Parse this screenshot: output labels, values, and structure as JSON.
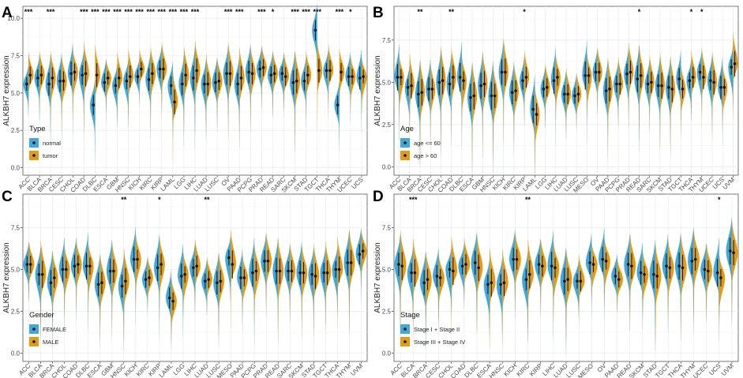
{
  "colors": {
    "blue": "#3fa9dd",
    "orange": "#e39b14",
    "grid": "#ebebeb",
    "panel_border": "#555555"
  },
  "chart_data": [
    {
      "panel": "A",
      "type": "violin",
      "ylabel": "ALKBH7 expression",
      "ylim": [
        -0.5,
        10.8
      ],
      "yticks": [
        "0.0",
        "2.5",
        "5.0",
        "7.5",
        "10.0"
      ],
      "legend": {
        "title": "Type",
        "entries": [
          "normal",
          "tumor"
        ]
      },
      "categories": [
        "ACC",
        "BLCA",
        "BRCA",
        "CESC",
        "CHOL",
        "COAD",
        "DLBC",
        "ESCA",
        "GBM",
        "HNSC",
        "KICH",
        "KIRC",
        "KIRP",
        "LAML",
        "LGG",
        "LIHC",
        "LUAD",
        "LUSC",
        "OV",
        "PAAD",
        "PCPG",
        "PRAD",
        "READ",
        "SARC",
        "SKCM",
        "STAD",
        "TGCT",
        "THCA",
        "THYM",
        "UCEC",
        "UCS"
      ],
      "series": [
        {
          "name": "normal",
          "medians": [
            5.6,
            6.0,
            5.6,
            5.8,
            6.3,
            6.2,
            4.2,
            5.7,
            5.5,
            5.8,
            6.1,
            5.9,
            6.6,
            5.5,
            5.6,
            6.0,
            5.6,
            5.7,
            6.3,
            5.6,
            6.4,
            6.6,
            6.2,
            6.3,
            5.7,
            5.8,
            9.2,
            6.5,
            4.2,
            6.1,
            6.0
          ]
        },
        {
          "name": "tumor",
          "medians": [
            6.2,
            6.2,
            6.0,
            5.8,
            6.4,
            6.3,
            6.2,
            6.0,
            6.0,
            6.1,
            6.6,
            6.3,
            6.6,
            4.4,
            6.2,
            6.5,
            5.6,
            5.8,
            6.3,
            6.0,
            6.3,
            6.7,
            6.3,
            6.1,
            5.8,
            6.2,
            6.5,
            6.5,
            6.4,
            6.1,
            6.1
          ]
        }
      ],
      "significance": [
        "***",
        "",
        "***",
        "",
        "",
        "***",
        "***",
        "***",
        "***",
        "***",
        "***",
        "***",
        "***",
        "***",
        "***",
        "***",
        "",
        "",
        "***",
        "***",
        "",
        "***",
        "*",
        "",
        "***",
        "***",
        "***",
        "",
        "***",
        "*",
        ""
      ]
    },
    {
      "panel": "B",
      "type": "violin",
      "ylabel": "ALKBH7 expression",
      "ylim": [
        -0.5,
        9.5
      ],
      "yticks": [
        "0.0",
        "2.5",
        "5.0",
        "7.5"
      ],
      "legend": {
        "title": "Age",
        "entries": [
          "age <= 60",
          "age > 60"
        ]
      },
      "categories": [
        "ACC",
        "BLCA",
        "BRCA",
        "CESC",
        "CHOL",
        "COAD",
        "DLBC",
        "ESCA",
        "GBM",
        "HNSC",
        "KICH",
        "KIRC",
        "KIRP",
        "LAML",
        "LGG",
        "LIHC",
        "LUAD",
        "LUSC",
        "MESO",
        "OV",
        "PAAD",
        "PCPG",
        "PRAD",
        "READ",
        "SARC",
        "SKCM",
        "STAD",
        "TGCT",
        "THCA",
        "THYM",
        "UCEC",
        "UCS",
        "UVM"
      ],
      "series": [
        {
          "name": "age <= 60",
          "medians": [
            5.3,
            4.7,
            4.3,
            4.6,
            5.0,
            4.9,
            5.3,
            4.1,
            4.8,
            4.2,
            5.6,
            4.4,
            5.1,
            3.4,
            4.6,
            5.1,
            4.3,
            4.2,
            5.4,
            5.6,
            4.5,
            4.9,
            5.5,
            5.2,
            4.9,
            4.8,
            4.7,
            5.2,
            5.1,
            5.6,
            5.1,
            4.7,
            5.9
          ]
        },
        {
          "name": "age > 60",
          "medians": [
            5.3,
            4.8,
            4.4,
            4.6,
            5.1,
            5.3,
            5.1,
            4.2,
            4.9,
            4.2,
            5.6,
            4.5,
            5.3,
            3.1,
            4.7,
            5.3,
            4.3,
            4.3,
            5.4,
            5.6,
            4.6,
            4.9,
            5.6,
            5.4,
            5.0,
            4.8,
            4.6,
            4.6,
            5.3,
            5.3,
            5.0,
            4.7,
            6.1
          ]
        }
      ],
      "significance": [
        "",
        "",
        "**",
        "",
        "",
        "**",
        "",
        "",
        "",
        "",
        "",
        "",
        "*",
        "",
        "",
        "",
        "",
        "",
        "",
        "",
        "",
        "",
        "",
        "*",
        "",
        "",
        "",
        "",
        "*",
        "*",
        "",
        "",
        ""
      ]
    },
    {
      "panel": "C",
      "type": "violin",
      "ylabel": "ALKBH7 expression",
      "ylim": [
        -0.5,
        9.5
      ],
      "yticks": [
        "0.0",
        "2.5",
        "5.0",
        "7.5"
      ],
      "legend": {
        "title": "Gender",
        "entries": [
          "FEMALE",
          "MALE"
        ]
      },
      "categories": [
        "ACC",
        "BLCA",
        "BRCA",
        "CHOL",
        "COAD",
        "DLBC",
        "ESCA",
        "GBM",
        "HNSC",
        "KICH",
        "KIRC",
        "KIRP",
        "LAML",
        "LGG",
        "LIHC",
        "LUAD",
        "LUSC",
        "MESO",
        "PAAD",
        "PCPG",
        "PRAD",
        "READ",
        "SARC",
        "SKCM",
        "STAD",
        "TGCT",
        "THCA",
        "THYM",
        "UVM"
      ],
      "series": [
        {
          "name": "FEMALE",
          "medians": [
            5.3,
            4.7,
            4.2,
            5.0,
            5.2,
            5.2,
            4.1,
            4.9,
            4.0,
            5.6,
            4.4,
            5.1,
            3.3,
            4.6,
            5.1,
            4.3,
            4.2,
            5.7,
            4.5,
            4.8,
            5.5,
            4.9,
            4.9,
            4.8,
            4.7,
            4.8,
            5.0,
            5.4,
            5.9
          ]
        },
        {
          "name": "MALE",
          "medians": [
            5.3,
            4.7,
            4.5,
            5.0,
            5.3,
            5.2,
            4.2,
            4.9,
            4.3,
            5.6,
            4.5,
            5.3,
            3.1,
            4.7,
            5.2,
            4.4,
            4.3,
            5.3,
            4.5,
            4.9,
            5.5,
            4.9,
            4.9,
            4.8,
            4.6,
            4.8,
            5.0,
            5.4,
            6.1
          ]
        }
      ],
      "significance": [
        "",
        "",
        "",
        "",
        "",
        "",
        "",
        "",
        "**",
        "",
        "",
        "*",
        "",
        "",
        "",
        "**",
        "",
        "",
        "",
        "",
        "",
        "",
        "",
        "",
        "",
        "",
        "",
        "",
        ""
      ]
    },
    {
      "panel": "D",
      "type": "violin",
      "ylabel": "ALKBH7 expression",
      "ylim": [
        -0.5,
        9.5
      ],
      "yticks": [
        "0.0",
        "2.5",
        "5.0",
        "7.5"
      ],
      "legend": {
        "title": "Stage",
        "entries": [
          "Stage I + Stage II",
          "Stage III + Stage IV"
        ]
      },
      "categories": [
        "ACC",
        "BLCA",
        "BRCA",
        "CESC",
        "CHOL",
        "COAD",
        "DLBC",
        "ESCA",
        "HNSC",
        "KICH",
        "KIRC",
        "KIRP",
        "LIHC",
        "LUAD",
        "LUSC",
        "MESO",
        "OV",
        "PAAD",
        "READ",
        "SKCM",
        "STAD",
        "TGCT",
        "THCA",
        "THYM",
        "UCEC",
        "UCS",
        "UVM"
      ],
      "series": [
        {
          "name": "Stage I + Stage II",
          "medians": [
            5.3,
            4.8,
            4.2,
            4.6,
            5.0,
            5.2,
            5.4,
            4.1,
            4.1,
            5.6,
            4.4,
            5.3,
            5.2,
            4.3,
            4.3,
            5.4,
            5.6,
            4.6,
            5.3,
            4.8,
            4.7,
            5.2,
            5.2,
            5.5,
            5.0,
            4.8,
            6.1
          ]
        },
        {
          "name": "Stage III + Stage IV",
          "medians": [
            5.2,
            4.8,
            4.4,
            4.5,
            4.9,
            5.3,
            5.1,
            4.2,
            4.2,
            5.6,
            4.7,
            5.2,
            5.1,
            4.4,
            4.3,
            5.3,
            5.5,
            4.4,
            5.2,
            4.7,
            4.6,
            5.1,
            5.1,
            5.6,
            4.9,
            4.5,
            6.0
          ]
        }
      ],
      "significance": [
        "",
        "***",
        "",
        "",
        "",
        "",
        "",
        "",
        "",
        "",
        "**",
        "",
        "",
        "",
        "",
        "",
        "",
        "",
        "",
        "",
        "",
        "",
        "",
        "",
        "",
        "*",
        ""
      ]
    }
  ]
}
